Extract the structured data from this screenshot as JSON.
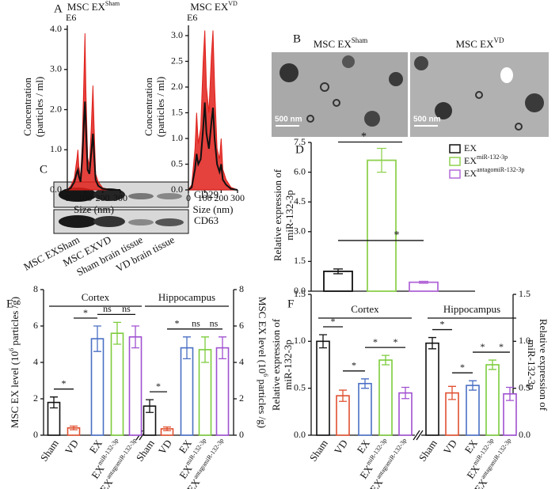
{
  "figure": {
    "panel_labels": [
      "A",
      "B",
      "C",
      "D",
      "E",
      "F"
    ],
    "images": [
      {
        "title": "MSC EX",
        "title_superscript": "Sham",
        "scale_bar": "500 nm"
      },
      {
        "title": "MSC EX",
        "title_superscript": "VD",
        "scale_bar": "500 nm"
      }
    ],
    "blot": {
      "lanes": [
        "MSC EXSham",
        "MSC EXVD",
        "Sham brain tissue",
        "VD brain tissue"
      ],
      "bands": [
        "CD29",
        "CD63"
      ]
    }
  },
  "chart_data": [
    {
      "type": "line",
      "title": "MSC EX",
      "title_superscript": "Sham",
      "exponent_label": "E6",
      "x_label": "Size (nm)",
      "y_label": [
        "Concentration",
        "(particles / ml)"
      ],
      "x": [
        0,
        20,
        40,
        55,
        60,
        65,
        75,
        85,
        95,
        100,
        105,
        115,
        125,
        135,
        145,
        150,
        160,
        175,
        200,
        250,
        300
      ],
      "series": [
        {
          "color": "#e0201b",
          "values": [
            0,
            0.1,
            0.3,
            0.8,
            1.0,
            0.6,
            0.3,
            1.2,
            3.0,
            3.9,
            2.5,
            0.8,
            0.6,
            1.5,
            2.6,
            1.8,
            0.4,
            0.2,
            0.05,
            0,
            0
          ]
        },
        {
          "color": "#111111",
          "values": [
            0,
            0.05,
            0.2,
            0.45,
            0.5,
            0.35,
            0.2,
            0.8,
            1.8,
            2.2,
            1.6,
            0.5,
            0.4,
            0.9,
            1.4,
            1.0,
            0.25,
            0.1,
            0.03,
            0,
            0
          ]
        }
      ],
      "xlim": [
        0,
        300
      ],
      "xticks": [
        0,
        100,
        200,
        300
      ],
      "ylim": [
        0,
        4.1
      ],
      "yticks": [
        {
          "value": 0,
          "label": "0.0"
        },
        {
          "value": 1,
          "label": "1.0"
        },
        {
          "value": 2,
          "label": "2.0"
        },
        {
          "value": 3,
          "label": "3.0"
        },
        {
          "value": 4,
          "label": "4.0"
        }
      ]
    },
    {
      "type": "line",
      "title": "MSC EX",
      "title_superscript": "VD",
      "exponent_label": "E6",
      "x_label": "Size (nm)",
      "y_label": [
        "Concentration",
        "(particles / ml)"
      ],
      "x": [
        0,
        20,
        40,
        50,
        60,
        75,
        90,
        100,
        110,
        125,
        140,
        150,
        160,
        175,
        190,
        200,
        210,
        230,
        260,
        300
      ],
      "series": [
        {
          "color": "#e0201b",
          "values": [
            0,
            0.1,
            0.8,
            1.5,
            0.9,
            1.2,
            2.5,
            3.1,
            2.0,
            1.5,
            2.6,
            3.1,
            2.0,
            0.8,
            0.6,
            1.0,
            0.4,
            0.2,
            0.05,
            0
          ]
        },
        {
          "color": "#111111",
          "values": [
            0,
            0.05,
            0.4,
            0.7,
            0.5,
            0.6,
            1.2,
            1.7,
            1.1,
            0.8,
            1.3,
            1.6,
            1.0,
            0.5,
            0.35,
            0.5,
            0.2,
            0.1,
            0.02,
            0
          ]
        }
      ],
      "xlim": [
        0,
        300
      ],
      "xticks": [
        0,
        100,
        200,
        300
      ],
      "ylim": [
        0,
        3.2
      ],
      "yticks": [
        {
          "value": 0,
          "label": "0.0"
        },
        0.5,
        {
          "value": 1,
          "label": "1.0"
        },
        1.5,
        {
          "value": 2,
          "label": "2.0"
        },
        2.5,
        {
          "value": 3,
          "label": "3.0"
        }
      ]
    },
    {
      "type": "bar",
      "y_label": [
        "Relative expression of",
        "miR-132-3p"
      ],
      "categories": [
        "EX",
        "EX",
        "EX"
      ],
      "category_superscripts": [
        null,
        "miR-132-3p",
        "antagomiR-132-3p"
      ],
      "values": [
        1.0,
        6.6,
        0.45
      ],
      "errors": [
        0.12,
        0.6,
        0.05
      ],
      "colors": [
        "#111111",
        "#8fd14f",
        "#b36ad8"
      ],
      "ylim": [
        0,
        7.5
      ],
      "yticks": [
        {
          "value": 0,
          "label": "0.0"
        },
        1.5,
        {
          "value": 3,
          "label": "3.0"
        },
        4.5,
        {
          "value": 6,
          "label": "6.0"
        },
        7.5
      ],
      "legend": "upper right",
      "annotations": [
        "*",
        "*"
      ]
    },
    {
      "type": "grouped_bar",
      "y_label": [
        "MSC EX level (10",
        "6",
        " particles /g)"
      ],
      "y2_label": [
        "MSC EX level (10",
        "6",
        " particles /g)"
      ],
      "groups": [
        "Cortex",
        "Hippocampus"
      ],
      "categories": [
        "Sham",
        "VD",
        "EX",
        "EX",
        "EX"
      ],
      "category_superscripts": [
        null,
        null,
        null,
        "miR-132-3p",
        "antagomiR-132-3p"
      ],
      "colors": [
        "#111111",
        "#e05030",
        "#4a6fc4",
        "#7ccc3c",
        "#a050d0"
      ],
      "series": [
        {
          "values": [
            1.8,
            0.4,
            5.3,
            5.6,
            5.4
          ],
          "errors": [
            0.3,
            0.1,
            0.7,
            0.6,
            0.6
          ]
        },
        {
          "values": [
            1.6,
            0.35,
            4.8,
            4.7,
            4.8
          ],
          "errors": [
            0.35,
            0.1,
            0.6,
            0.7,
            0.6
          ]
        }
      ],
      "ylim": [
        0,
        8
      ],
      "yticks": [
        0,
        2,
        4,
        6,
        8
      ],
      "y2lim": [
        0,
        8
      ],
      "y2ticks": [
        0,
        2,
        4,
        6,
        8
      ],
      "annotations": [
        [
          "*",
          "*",
          "ns",
          "ns"
        ],
        [
          "*",
          "*",
          "ns",
          "ns"
        ]
      ]
    },
    {
      "type": "grouped_bar",
      "y_label": [
        "Relative expression of",
        "miR-132-3p"
      ],
      "y2_label": [
        "Relative expression of",
        "miR-132-3p"
      ],
      "groups": [
        "Cortex",
        "Hippocampus"
      ],
      "categories": [
        "Sham",
        "VD",
        "EX",
        "EX",
        "EX"
      ],
      "category_superscripts": [
        null,
        null,
        null,
        "miR-132-3p",
        "antagomiR-132-3p"
      ],
      "colors": [
        "#111111",
        "#e05030",
        "#4a6fc4",
        "#7ccc3c",
        "#a050d0"
      ],
      "series": [
        {
          "values": [
            1.0,
            0.42,
            0.55,
            0.8,
            0.45
          ],
          "errors": [
            0.07,
            0.06,
            0.05,
            0.05,
            0.06
          ]
        },
        {
          "values": [
            0.98,
            0.45,
            0.53,
            0.75,
            0.44
          ],
          "errors": [
            0.06,
            0.07,
            0.05,
            0.05,
            0.07
          ]
        }
      ],
      "ylim": [
        0,
        1.5
      ],
      "yticks": [
        {
          "value": 0,
          "label": "0.0"
        },
        0.5,
        {
          "value": 1,
          "label": "1.0"
        },
        1.5
      ],
      "y2lim": [
        0,
        1.5
      ],
      "y2ticks": [
        {
          "value": 0,
          "label": "0.0"
        },
        0.5,
        {
          "value": 1,
          "label": "1.0"
        },
        1.5
      ],
      "annotations": [
        [
          "*",
          "*",
          "*",
          "*"
        ],
        [
          "*",
          "*",
          "*",
          "*"
        ]
      ]
    }
  ]
}
